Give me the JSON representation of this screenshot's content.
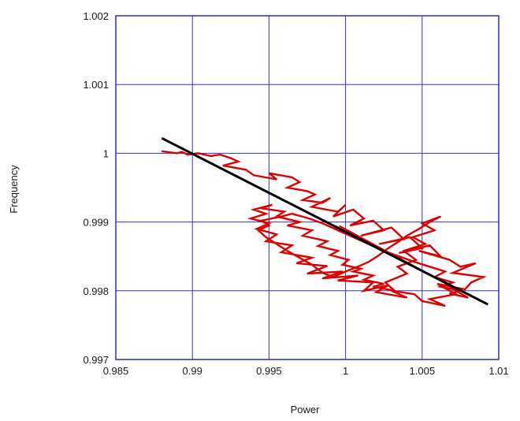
{
  "chart_data": {
    "type": "scatter",
    "title": "",
    "xlabel": "Power",
    "ylabel": "Frequency",
    "xlim": [
      0.985,
      1.01
    ],
    "ylim": [
      0.997,
      1.002
    ],
    "x_ticks": [
      0.985,
      0.99,
      0.995,
      1,
      1.005,
      1.01
    ],
    "x_tick_labels": [
      "0.985",
      "0.99",
      "0.995",
      "1",
      "1.005",
      "1.01"
    ],
    "y_ticks": [
      0.997,
      0.998,
      0.999,
      1,
      1.001,
      1.002
    ],
    "y_tick_labels": [
      "0.997",
      "0.998",
      "0.999",
      "1",
      "1.001",
      "1.002"
    ],
    "grid": true,
    "grid_color": "#3333cc",
    "plot_border_color": "#2d2db8",
    "series": [
      {
        "style": "line",
        "color": "#dd0000",
        "x": [
          0.988,
          0.989,
          0.9893,
          0.9897,
          0.9904,
          0.9912,
          0.9918,
          0.9925,
          0.993,
          0.992,
          0.9935,
          0.994,
          0.9955,
          0.995,
          0.9965,
          0.997,
          0.9962,
          0.9975,
          0.998,
          0.9972,
          0.9985,
          0.999,
          0.9978,
          0.9995,
          1.0,
          0.9992,
          1.0005,
          1.0012,
          1.0003,
          1.0018,
          1.0025,
          1.001,
          1.003,
          1.0038,
          1.0022,
          1.0042,
          1.005,
          1.0035,
          1.0055,
          1.0062,
          1.0048,
          1.0068,
          1.0075,
          1.0085,
          1.007,
          1.009,
          1.0082,
          1.0078,
          1.006,
          1.0072,
          1.0055,
          1.0065,
          1.005,
          1.0045,
          1.003,
          1.004,
          1.002,
          1.0028,
          1.0012,
          1.0018,
          0.9995,
          1.0008,
          0.9985,
          0.9998,
          0.9975,
          0.9988,
          0.9968,
          0.9978,
          0.9958,
          0.9965,
          0.9948,
          0.9955,
          0.9942,
          0.995,
          0.9938,
          0.9948,
          0.994,
          0.9952,
          0.9945,
          0.996,
          0.9955,
          0.997,
          0.9962,
          0.9978,
          0.9972,
          0.9988,
          0.9982,
          0.9995,
          0.999,
          1.0002,
          0.9998,
          1.001,
          1.0005,
          1.0018,
          1.0012,
          1.0025,
          1.0018,
          1.0032,
          1.0026,
          1.004,
          1.0034,
          1.0046,
          1.0038,
          1.0052,
          1.0044,
          1.0058,
          1.005,
          1.0062,
          1.0055,
          1.0048,
          1.004,
          1.0035,
          1.0028,
          1.0022,
          1.0015,
          1.0008,
          1.0,
          0.9992,
          0.9985,
          0.9978,
          0.997,
          0.9962,
          0.9955,
          0.9948,
          0.9943,
          0.995,
          0.9945,
          0.9958,
          0.9965,
          0.9975,
          0.9985,
          0.9995,
          1.0005,
          1.0015,
          1.0025,
          1.0035,
          1.0045,
          1.0055,
          1.0065,
          1.0058,
          1.007,
          1.0062,
          1.0075,
          1.0068,
          1.008,
          1.0072,
          1.0066,
          1.0056,
          1.0046,
          1.0036,
          1.0026,
          1.0016,
          1.0006,
          0.9996
        ],
        "y": [
          1.00003,
          1.0,
          1.00002,
          0.99998,
          1.0,
          0.99996,
          0.99998,
          0.99993,
          0.99988,
          0.99982,
          0.99976,
          0.99968,
          0.99962,
          0.99971,
          0.99965,
          0.99958,
          0.9995,
          0.99945,
          0.9994,
          0.99932,
          0.99928,
          0.99935,
          0.99922,
          0.99915,
          0.99925,
          0.99908,
          0.99918,
          0.99905,
          0.99895,
          0.99902,
          0.99888,
          0.9988,
          0.99892,
          0.99875,
          0.99868,
          0.99878,
          0.99862,
          0.99855,
          0.99866,
          0.9985,
          0.99858,
          0.99845,
          0.99835,
          0.9984,
          0.99826,
          0.9982,
          0.99812,
          0.99802,
          0.9981,
          0.99795,
          0.99788,
          0.99778,
          0.99785,
          0.99795,
          0.998,
          0.9979,
          0.99798,
          0.99808,
          0.998,
          0.99812,
          0.99815,
          0.99822,
          0.99818,
          0.99828,
          0.99825,
          0.99836,
          0.9984,
          0.99848,
          0.99856,
          0.99866,
          0.99872,
          0.99882,
          0.9989,
          0.99898,
          0.99905,
          0.99912,
          0.99918,
          0.99925,
          0.9992,
          0.99915,
          0.99908,
          0.999,
          0.99895,
          0.99888,
          0.9988,
          0.99872,
          0.99865,
          0.99858,
          0.99852,
          0.99845,
          0.99838,
          0.99832,
          0.99828,
          0.99822,
          0.99816,
          0.9981,
          0.99806,
          0.998,
          0.99812,
          0.99825,
          0.99835,
          0.99845,
          0.99858,
          0.99868,
          0.99878,
          0.99888,
          0.99898,
          0.99908,
          0.999,
          0.9989,
          0.9988,
          0.99872,
          0.99862,
          0.99852,
          0.99842,
          0.99835,
          0.99828,
          0.9982,
          0.99826,
          0.99838,
          0.99848,
          0.99858,
          0.99868,
          0.99878,
          0.99888,
          0.99895,
          0.99902,
          0.99908,
          0.99912,
          0.99906,
          0.99898,
          0.99888,
          0.99878,
          0.99868,
          0.99858,
          0.9985,
          0.99842,
          0.99835,
          0.99828,
          0.9982,
          0.99812,
          0.99806,
          0.998,
          0.99796,
          0.9979,
          0.998,
          0.9981,
          0.99822,
          0.99834,
          0.99846,
          0.99858,
          0.9987,
          0.99882,
          0.99894
        ]
      },
      {
        "style": "line",
        "color": "#000000",
        "x": [
          0.988,
          1.0093
        ],
        "y": [
          1.00022,
          0.9978
        ]
      }
    ]
  }
}
